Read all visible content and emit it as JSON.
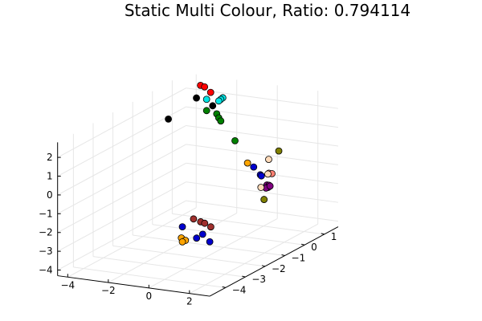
{
  "chart_data": {
    "type": "scatter",
    "title": "Static Multi Colour, Ratio: 0.794114",
    "xlabel": "",
    "ylabel": "",
    "zlabel": "",
    "grid": true,
    "legend": false,
    "axes": {
      "x": {
        "range": [
          -4.5,
          3
        ],
        "ticks": [
          -4,
          -2,
          0,
          2
        ],
        "tick_labels": [
          "−4",
          "−2",
          "0",
          "2"
        ]
      },
      "y": {
        "range": [
          -4.8,
          1.7
        ],
        "ticks": [
          -4,
          -3,
          -2,
          -1,
          0,
          1
        ],
        "tick_labels": [
          "−4",
          "−3",
          "−2",
          "−1",
          "0",
          "1"
        ]
      },
      "z": {
        "range": [
          -4.3,
          2.8
        ],
        "ticks": [
          -4,
          -3,
          -2,
          -1,
          0,
          1,
          2
        ],
        "tick_labels": [
          "−4",
          "−3",
          "−2",
          "−1",
          "0",
          "1",
          "2"
        ]
      }
    },
    "points": [
      {
        "color": "#ff0000",
        "x": -3.3,
        "y": 1.2,
        "z": 2.6
      },
      {
        "color": "#ff0000",
        "x": -3.1,
        "y": 1.2,
        "z": 2.55
      },
      {
        "color": "#ff0000",
        "x": -2.8,
        "y": 1.2,
        "z": 2.3
      },
      {
        "color": "#00e5e5",
        "x": -3.0,
        "y": 1.2,
        "z": 1.9
      },
      {
        "color": "#00e5e5",
        "x": -2.2,
        "y": 1.2,
        "z": 2.1
      },
      {
        "color": "#00e5e5",
        "x": -2.3,
        "y": 1.2,
        "z": 2.0
      },
      {
        "color": "#00e5e5",
        "x": -2.4,
        "y": 1.2,
        "z": 1.9
      },
      {
        "color": "#000000",
        "x": -3.5,
        "y": 1.2,
        "z": 1.9
      },
      {
        "color": "#000000",
        "x": -2.7,
        "y": 1.2,
        "z": 1.6
      },
      {
        "color": "#008000",
        "x": -3.0,
        "y": 1.2,
        "z": 1.3
      },
      {
        "color": "#008000",
        "x": -2.5,
        "y": 1.2,
        "z": 1.2
      },
      {
        "color": "#008000",
        "x": -2.4,
        "y": 1.2,
        "z": 1.0
      },
      {
        "color": "#008000",
        "x": -2.3,
        "y": 1.2,
        "z": 0.85
      },
      {
        "color": "#008000",
        "x": -1.6,
        "y": 1.2,
        "z": -0.1
      },
      {
        "color": "#000000",
        "x": -4.3,
        "y": 0.6,
        "z": 1.0
      },
      {
        "color": "#ffa500",
        "x": -0.3,
        "y": 0.5,
        "z": -0.7
      },
      {
        "color": "#0000cd",
        "x": 0.1,
        "y": 0.4,
        "z": -0.8
      },
      {
        "color": "#0000cd",
        "x": 1.55,
        "y": -0.75,
        "z": -0.35
      },
      {
        "color": "#0000cd",
        "x": 1.6,
        "y": -0.75,
        "z": -0.4
      },
      {
        "color": "#808000",
        "x": 2.8,
        "y": -1.1,
        "z": 1.3
      },
      {
        "color": "#ffdab9",
        "x": 2.4,
        "y": -1.2,
        "z": 0.85
      },
      {
        "color": "#fa8072",
        "x": 2.8,
        "y": -1.6,
        "z": 0.4
      },
      {
        "color": "#fa8072",
        "x": 2.95,
        "y": -1.6,
        "z": 0.4
      },
      {
        "color": "#ffdab9",
        "x": 2.75,
        "y": -1.6,
        "z": 0.35
      },
      {
        "color": "#800080",
        "x": 2.9,
        "y": -1.8,
        "z": -0.1
      },
      {
        "color": "#800080",
        "x": 3.0,
        "y": -1.8,
        "z": -0.1
      },
      {
        "color": "#800080",
        "x": 3.05,
        "y": -1.9,
        "z": -0.15
      },
      {
        "color": "#800080",
        "x": 2.95,
        "y": -1.9,
        "z": -0.2
      },
      {
        "color": "#800080",
        "x": 3.1,
        "y": -1.85,
        "z": -0.1
      },
      {
        "color": "#ffdab9",
        "x": 2.7,
        "y": -1.9,
        "z": -0.2
      },
      {
        "color": "#808000",
        "x": 2.95,
        "y": -2.0,
        "z": -0.75
      },
      {
        "color": "#a0302d",
        "x": -1.5,
        "y": -1.0,
        "z": -3.0
      },
      {
        "color": "#a0302d",
        "x": -1.15,
        "y": -1.0,
        "z": -3.1
      },
      {
        "color": "#a0302d",
        "x": -0.95,
        "y": -1.0,
        "z": -3.15
      },
      {
        "color": "#a0302d",
        "x": -0.65,
        "y": -1.0,
        "z": -3.3
      },
      {
        "color": "#0000cd",
        "x": -2.05,
        "y": -1.0,
        "z": -3.5
      },
      {
        "color": "#0000cd",
        "x": -1.05,
        "y": -1.0,
        "z": -3.75
      },
      {
        "color": "#0000cd",
        "x": -1.35,
        "y": -1.0,
        "z": -4.0
      },
      {
        "color": "#0000cd",
        "x": -0.7,
        "y": -1.0,
        "z": -4.1
      },
      {
        "color": "#ffa500",
        "x": -2.1,
        "y": -1.0,
        "z": -4.1
      },
      {
        "color": "#ffa500",
        "x": -1.9,
        "y": -1.0,
        "z": -4.2
      },
      {
        "color": "#ffa500",
        "x": -2.05,
        "y": -1.0,
        "z": -4.3
      }
    ]
  }
}
